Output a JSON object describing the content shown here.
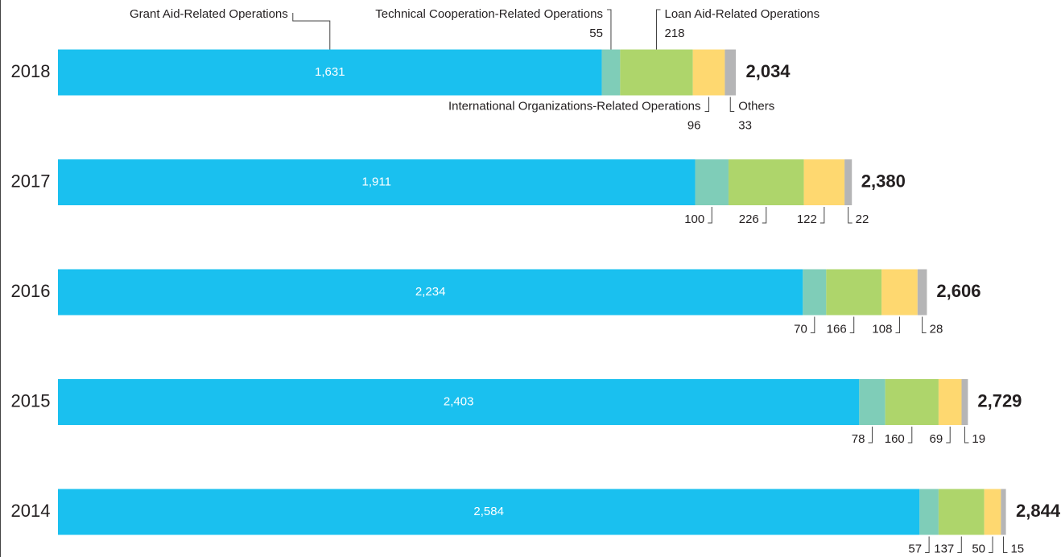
{
  "chart_data": {
    "type": "bar",
    "orientation": "horizontal",
    "stacked": true,
    "categories": [
      "2018",
      "2017",
      "2016",
      "2015",
      "2014"
    ],
    "series": [
      {
        "name": "Grant Aid-Related Operations",
        "color": "#1ac0ef",
        "values": [
          1631,
          1911,
          2234,
          2403,
          2584
        ],
        "value_labels": [
          "1,631",
          "1,911",
          "2,234",
          "2,403",
          "2,584"
        ]
      },
      {
        "name": "Technical Cooperation-Related Operations",
        "color": "#7fcdb8",
        "values": [
          55,
          100,
          70,
          78,
          57
        ]
      },
      {
        "name": "Loan Aid-Related Operations",
        "color": "#aed56b",
        "values": [
          218,
          226,
          166,
          160,
          137
        ]
      },
      {
        "name": "International Organizations-Related Operations",
        "color": "#fed870",
        "values": [
          96,
          122,
          108,
          69,
          50
        ]
      },
      {
        "name": "Others",
        "color": "#b5b5b6",
        "values": [
          33,
          22,
          28,
          19,
          15
        ]
      }
    ],
    "totals": [
      2034,
      2380,
      2606,
      2729,
      2844
    ],
    "total_labels": [
      "2,034",
      "2,380",
      "2,606",
      "2,729",
      "2,844"
    ]
  }
}
